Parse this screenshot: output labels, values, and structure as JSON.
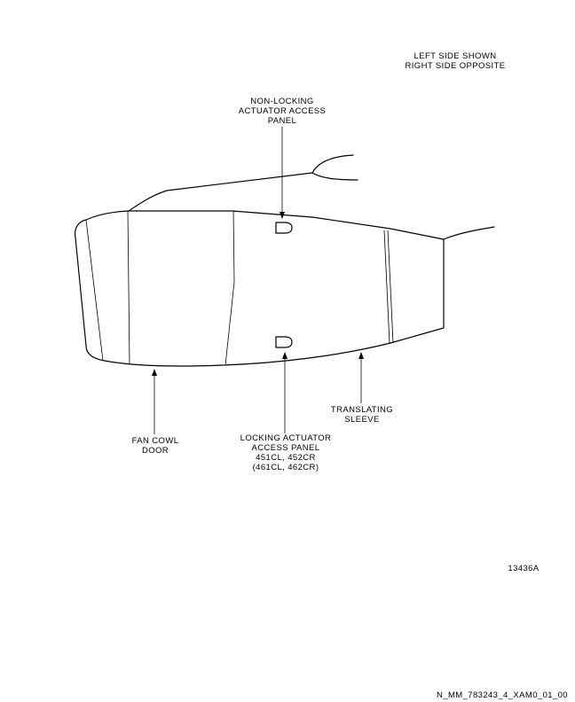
{
  "orientation_note": [
    "LEFT SIDE SHOWN",
    "RIGHT SIDE OPPOSITE"
  ],
  "callouts": {
    "non_locking_panel": [
      "NON-LOCKING",
      "ACTUATOR ACCESS",
      "PANEL"
    ],
    "fan_cowl_door": [
      "FAN COWL",
      "DOOR"
    ],
    "locking_panel": [
      "LOCKING ACTUATOR",
      "ACCESS PANEL",
      "451CL, 452CR",
      "(461CL, 462CR)"
    ],
    "translating_sleeve": [
      "TRANSLATING",
      "SLEEVE"
    ]
  },
  "figure_number": "13436A",
  "document_id": "N_MM_783243_4_XAM0_01_00"
}
